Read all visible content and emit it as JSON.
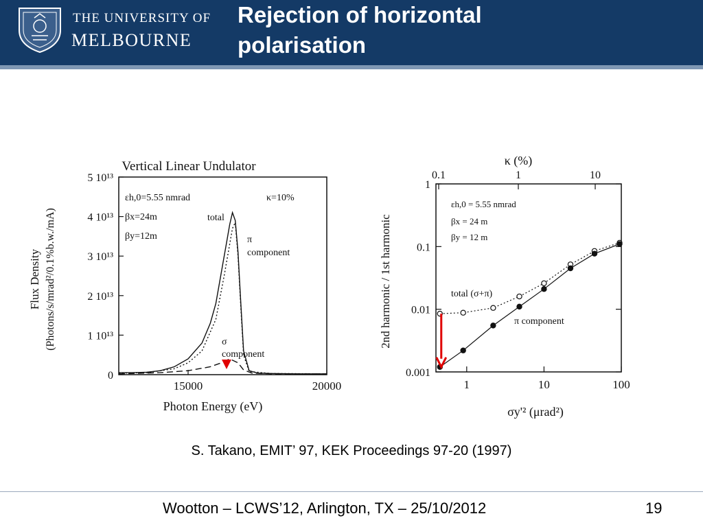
{
  "header": {
    "logo_line1": "THE UNIVERSITY OF",
    "logo_line2": "MELBOURNE",
    "title_line1": "Rejection of horizontal",
    "title_line2": "polarisation",
    "colors": {
      "bar": "#143a66",
      "rule": "#7f97b3"
    },
    "logo_icon": "university-crest-icon"
  },
  "citation": "S. Takano, EMIT’ 97, KEK Proceedings 97-20 (1997)",
  "footer": {
    "text": "Wootton – LCWS’12, Arlington, TX – 25/10/2012",
    "page_number": "19"
  },
  "chart_data": [
    {
      "type": "line",
      "title": "Vertical Linear Undulator",
      "xlabel": "Photon Energy (eV)",
      "ylabel_line1": "Flux Density",
      "ylabel_line2": "(Photons/s/mrad²/0.1%b.w./mA)",
      "xlim": [
        12500,
        20000
      ],
      "ylim": [
        0,
        50000000000000.0
      ],
      "x_ticks": [
        15000,
        20000
      ],
      "y_ticks": [
        {
          "value": 0,
          "label": "0"
        },
        {
          "value": 10000000000000.0,
          "label": "1 10¹³"
        },
        {
          "value": 20000000000000.0,
          "label": "2 10¹³"
        },
        {
          "value": 30000000000000.0,
          "label": "3 10¹³"
        },
        {
          "value": 40000000000000.0,
          "label": "4 10¹³"
        },
        {
          "value": 50000000000000.0,
          "label": "5 10¹³"
        }
      ],
      "params": [
        "εh,0=5.55 nmrad",
        "βx=24m",
        "βy=12m"
      ],
      "kappa": "κ=10%",
      "series": [
        {
          "name": "total",
          "style": "solid",
          "x": [
            12500,
            13000,
            13500,
            14000,
            14500,
            15000,
            15500,
            15800,
            16000,
            16200,
            16400,
            16500,
            16600,
            16700,
            16800,
            16900,
            17000,
            17200,
            17500,
            18000,
            19000,
            20000
          ],
          "y": [
            500000000000.0,
            500000000000.0,
            600000000000.0,
            1000000000000.0,
            2000000000000.0,
            4000000000000.0,
            8000000000000.0,
            13000000000000.0,
            18000000000000.0,
            26000000000000.0,
            34000000000000.0,
            38000000000000.0,
            41000000000000.0,
            39000000000000.0,
            31000000000000.0,
            18000000000000.0,
            6000000000000.0,
            1000000000000.0,
            400000000000.0,
            300000000000.0,
            200000000000.0,
            200000000000.0
          ]
        },
        {
          "name": "π component",
          "style": "dotted",
          "x": [
            12500,
            13500,
            14500,
            15000,
            15500,
            16000,
            16300,
            16600,
            16700,
            16800,
            16900,
            17000,
            17200,
            18000,
            20000
          ],
          "y": [
            400000000000.0,
            500000000000.0,
            1500000000000.0,
            3000000000000.0,
            6000000000000.0,
            14000000000000.0,
            25000000000000.0,
            37000000000000.0,
            38500000000000.0,
            30000000000000.0,
            17000000000000.0,
            5000000000000.0,
            800000000000.0,
            300000000000.0,
            200000000000.0
          ]
        },
        {
          "name": "σ component",
          "style": "dashed",
          "x": [
            12500,
            14000,
            15000,
            15800,
            16200,
            16500,
            16800,
            17000,
            17300,
            18000,
            20000
          ],
          "y": [
            200000000000.0,
            500000000000.0,
            1000000000000.0,
            2000000000000.0,
            3000000000000.0,
            4000000000000.0,
            3000000000000.0,
            1200000000000.0,
            400000000000.0,
            200000000000.0,
            200000000000.0
          ]
        }
      ],
      "labels": {
        "total": "total",
        "pi_line1": "π",
        "pi_line2": "component",
        "sigma_line1": "σ",
        "sigma_line2": "component"
      },
      "annotation_arrow_color": "#e00000"
    },
    {
      "type": "line",
      "xlabel": "σy'² (μrad²)",
      "ylabel": "2nd harmonic / 1st harmonic",
      "top_axis_label": "κ (%)",
      "x_scale": "log",
      "y_scale": "log",
      "xlim": [
        0.4,
        100
      ],
      "ylim": [
        0.001,
        1
      ],
      "x_ticks": [
        "1",
        "10",
        "100"
      ],
      "top_ticks": [
        "0.1",
        "1",
        "10"
      ],
      "y_ticks": [
        "0.001",
        "0.01",
        "0.1",
        "1"
      ],
      "params": [
        "εh,0 = 5.55 nmrad",
        "βx = 24 m",
        "βy = 12 m"
      ],
      "series": [
        {
          "name": "total (σ+π)",
          "style": "dotted-open-circles",
          "x": [
            0.45,
            0.9,
            2.2,
            4.8,
            10,
            22,
            45,
            95
          ],
          "y": [
            0.0085,
            0.0088,
            0.0105,
            0.016,
            0.026,
            0.052,
            0.085,
            0.115
          ]
        },
        {
          "name": "π component",
          "style": "solid-filled-circles",
          "x": [
            0.45,
            0.9,
            2.2,
            4.8,
            10,
            22,
            45,
            95
          ],
          "y": [
            0.0012,
            0.0022,
            0.0055,
            0.011,
            0.021,
            0.045,
            0.077,
            0.11
          ]
        }
      ],
      "annotation_arrow": {
        "from_y": 0.0085,
        "to_y": 0.0012,
        "x": 0.45,
        "color": "#e00000"
      }
    }
  ]
}
